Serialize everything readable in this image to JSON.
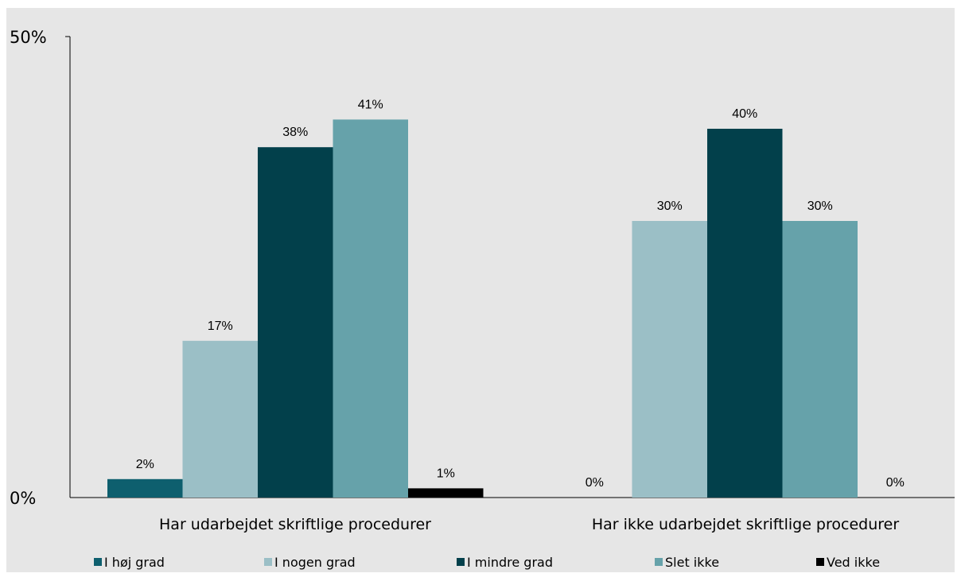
{
  "chart_data": {
    "type": "bar",
    "categories": [
      "Har udarbejdet skriftlige procedurer",
      "Har ikke udarbejdet skriftlige procedurer"
    ],
    "series": [
      {
        "name": "I høj grad",
        "color": "#0e5f6e",
        "values": [
          2,
          0
        ],
        "labels": [
          "2%",
          "0%"
        ]
      },
      {
        "name": "I nogen grad",
        "color": "#9bbfc6",
        "values": [
          17,
          30
        ],
        "labels": [
          "17%",
          "30%"
        ]
      },
      {
        "name": "I mindre grad",
        "color": "#02404b",
        "values": [
          38,
          40
        ],
        "labels": [
          "38%",
          "40%"
        ]
      },
      {
        "name": "Slet ikke",
        "color": "#66a2aa",
        "values": [
          41,
          30
        ],
        "labels": [
          "41%",
          "30%"
        ]
      },
      {
        "name": "Ved ikke",
        "color": "#000000",
        "values": [
          1,
          0
        ],
        "labels": [
          "1%",
          "0%"
        ]
      }
    ],
    "ylim": [
      0,
      50
    ],
    "yticks": [
      "0%",
      "50%"
    ],
    "title": "",
    "xlabel": "",
    "ylabel": "",
    "grid": false,
    "legend": "bottom",
    "background": "#e6e6e6"
  }
}
